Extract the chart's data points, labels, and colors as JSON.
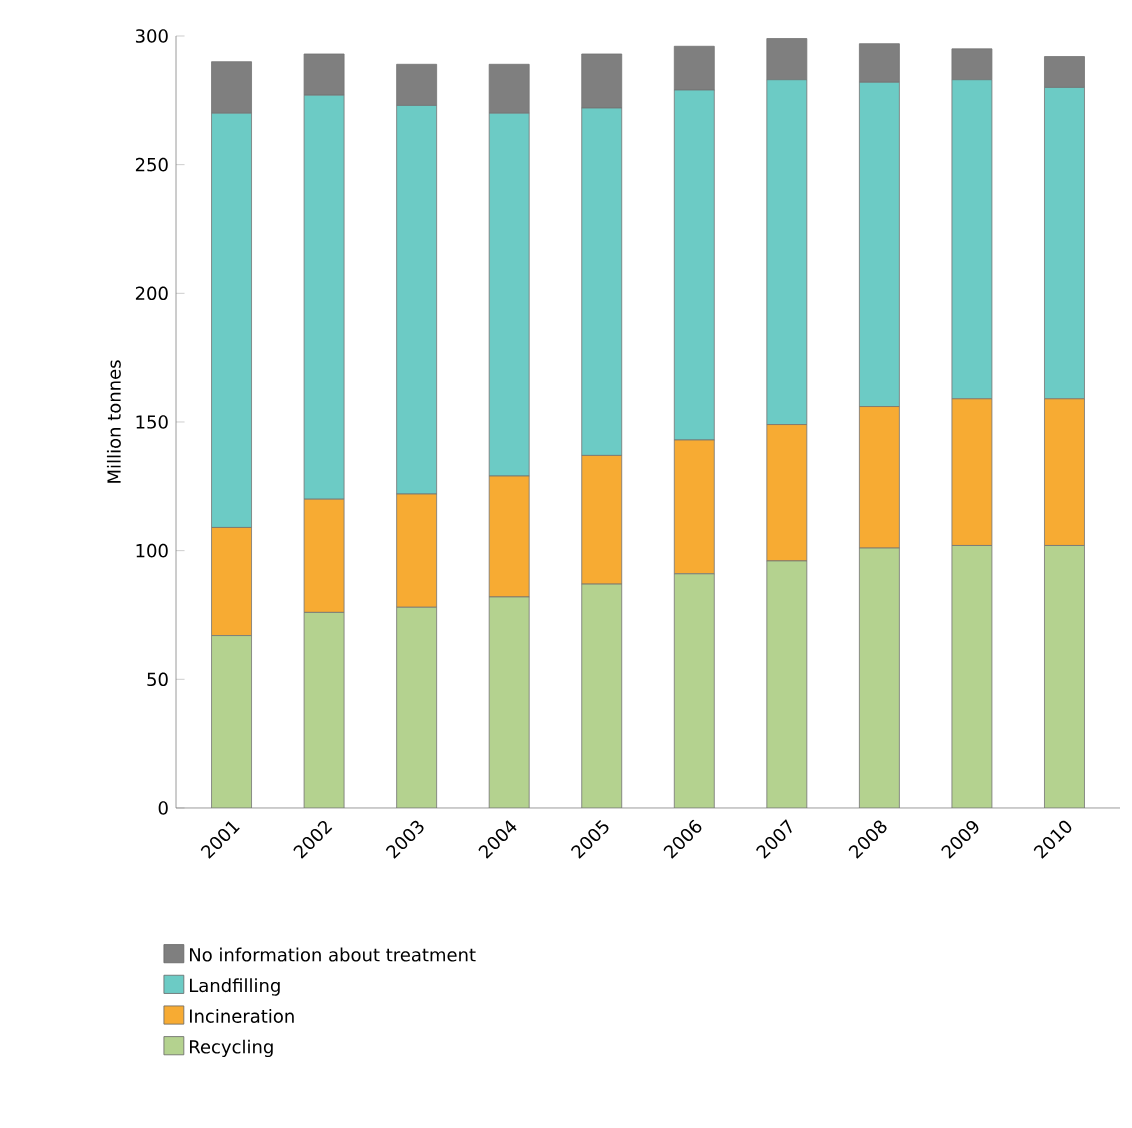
{
  "chart_data": {
    "type": "bar",
    "stacked": true,
    "ylabel": "Million tonnes",
    "categories": [
      "2001",
      "2002",
      "2003",
      "2004",
      "2005",
      "2006",
      "2007",
      "2008",
      "2009",
      "2010"
    ],
    "ylim": [
      0,
      300
    ],
    "yticks": [
      0,
      50,
      100,
      150,
      200,
      250,
      300
    ],
    "grid": false,
    "legend": "bottom",
    "series": [
      {
        "name": "Recycling",
        "color": "#b4d28f",
        "values": [
          67,
          76,
          78,
          82,
          87,
          91,
          96,
          101,
          102,
          102
        ]
      },
      {
        "name": "Incineration",
        "color": "#f7ab33",
        "values": [
          42,
          44,
          44,
          47,
          50,
          52,
          53,
          55,
          57,
          57
        ]
      },
      {
        "name": "Landfilling",
        "color": "#6ccbc5",
        "values": [
          161,
          157,
          151,
          141,
          135,
          136,
          134,
          126,
          124,
          121
        ]
      },
      {
        "name": "No information about treatment",
        "color": "#7f7f7f",
        "values": [
          20,
          16,
          16,
          19,
          21,
          17,
          16,
          15,
          12,
          12
        ]
      }
    ]
  }
}
